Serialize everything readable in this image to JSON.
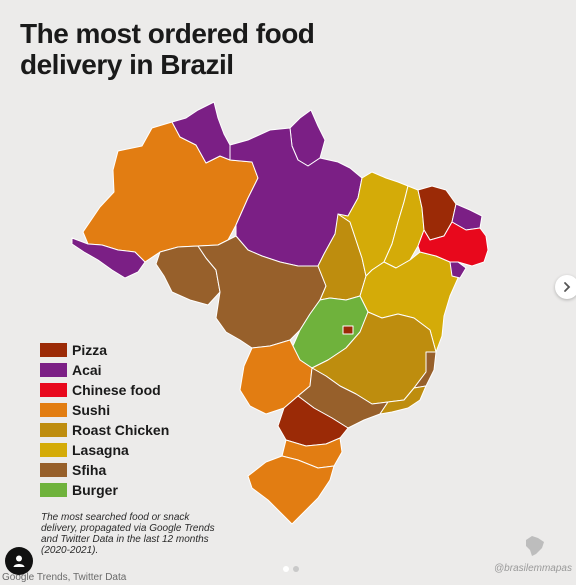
{
  "title_line1": "The most ordered food",
  "title_line2": "delivery in Brazil",
  "colors": {
    "pizza": "#9b2a06",
    "acai": "#7b1f85",
    "chinese": "#e8081c",
    "sushi": "#e27d12",
    "roast_chicken": "#be8d0e",
    "lasagna": "#d4ab08",
    "sfiha": "#97602b",
    "burger": "#6fb23c"
  },
  "legend": [
    {
      "label": "Pizza",
      "color": "#9b2a06"
    },
    {
      "label": "Acai",
      "color": "#7b1f85"
    },
    {
      "label": "Chinese food",
      "color": "#e8081c"
    },
    {
      "label": "Sushi",
      "color": "#e27d12"
    },
    {
      "label": "Roast Chicken",
      "color": "#be8d0e"
    },
    {
      "label": "Lasagna",
      "color": "#d4ab08"
    },
    {
      "label": "Sfiha",
      "color": "#97602b"
    },
    {
      "label": "Burger",
      "color": "#6fb23c"
    }
  ],
  "footnote": "The most searched food or snack delivery, propagated via Google Trends and Twitter Data in the last 12 months (2020-2021).",
  "source": "Google Trends, Twitter Data",
  "watermark": "@brasilemmapas"
}
